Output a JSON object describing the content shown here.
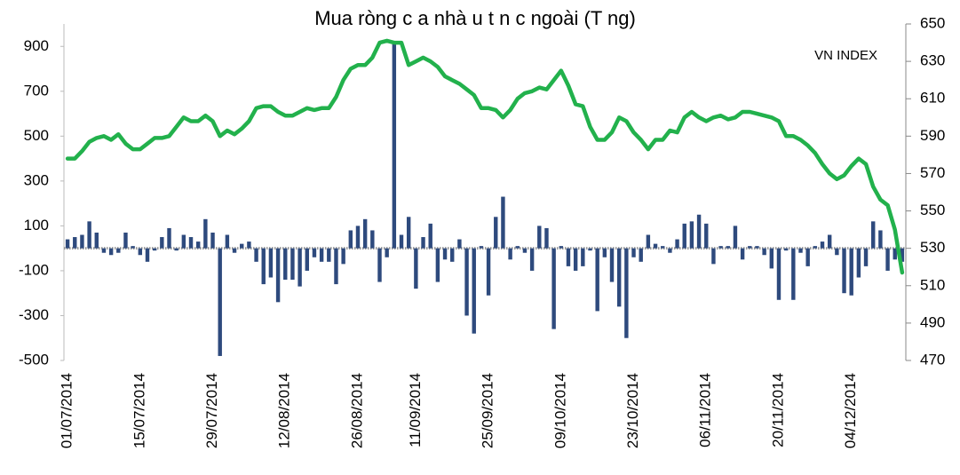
{
  "chart_data": {
    "type": "bar",
    "title": "Mua ròng c a nhà  u t  n  c ngoài (T      ng)",
    "categories": [
      "01/07/2014",
      null,
      null,
      null,
      null,
      null,
      null,
      null,
      null,
      null,
      "15/07/2014",
      null,
      null,
      null,
      null,
      null,
      null,
      null,
      null,
      null,
      "29/07/2014",
      null,
      null,
      null,
      null,
      null,
      null,
      null,
      null,
      null,
      "12/08/2014",
      null,
      null,
      null,
      null,
      null,
      null,
      null,
      null,
      null,
      "26/08/2014",
      null,
      null,
      null,
      null,
      null,
      null,
      null,
      "11/09/2014",
      null,
      null,
      null,
      null,
      null,
      null,
      null,
      null,
      null,
      "25/09/2014",
      null,
      null,
      null,
      null,
      null,
      null,
      null,
      null,
      null,
      "09/10/2014",
      null,
      null,
      null,
      null,
      null,
      null,
      null,
      null,
      null,
      "23/10/2014",
      null,
      null,
      null,
      null,
      null,
      null,
      null,
      null,
      null,
      "06/11/2014",
      null,
      null,
      null,
      null,
      null,
      null,
      null,
      null,
      null,
      "20/11/2014",
      null,
      null,
      null,
      null,
      null,
      null,
      null,
      null,
      null,
      "04/12/2014",
      null,
      null,
      null,
      null,
      null,
      null,
      null
    ],
    "series": [
      {
        "type": "bar",
        "color": "#2e4a7d",
        "values": [
          40,
          50,
          60,
          120,
          70,
          -20,
          -30,
          -20,
          70,
          10,
          -30,
          -60,
          -10,
          50,
          90,
          -10,
          60,
          50,
          30,
          130,
          70,
          -480,
          60,
          -20,
          20,
          30,
          -60,
          -160,
          -130,
          -240,
          -140,
          -140,
          -170,
          -100,
          -40,
          -60,
          -60,
          -160,
          -70,
          80,
          100,
          130,
          80,
          -150,
          -40,
          910,
          60,
          140,
          -180,
          50,
          110,
          -150,
          -50,
          -60,
          40,
          -300,
          -380,
          10,
          -210,
          140,
          230,
          -50,
          10,
          -20,
          -100,
          100,
          90,
          -360,
          10,
          -80,
          -100,
          -80,
          -10,
          -280,
          -40,
          -150,
          -260,
          -400,
          -40,
          -60,
          60,
          20,
          10,
          -20,
          40,
          110,
          120,
          150,
          110,
          -70,
          10,
          10,
          100,
          -50,
          10,
          10,
          -30,
          -90,
          -230,
          -10,
          -230,
          -20,
          -80,
          10,
          30,
          60,
          -30,
          -200,
          -210,
          -130,
          -80,
          120,
          80,
          -100,
          -50,
          -60
        ]
      },
      {
        "type": "line",
        "name": "VN INDEX",
        "axis": "y2",
        "color": "#22b14c",
        "values": [
          578,
          578,
          582,
          587,
          589,
          590,
          588,
          591,
          586,
          583,
          583,
          586,
          589,
          589,
          590,
          595,
          600,
          598,
          598,
          601,
          598,
          590,
          593,
          591,
          594,
          598,
          605,
          606,
          606,
          603,
          601,
          601,
          603,
          605,
          604,
          605,
          605,
          611,
          620,
          626,
          628,
          628,
          632,
          640,
          641,
          640,
          640,
          628,
          630,
          632,
          630,
          627,
          622,
          620,
          618,
          615,
          612,
          605,
          605,
          604,
          600,
          604,
          610,
          613,
          614,
          616,
          615,
          620,
          625,
          617,
          607,
          606,
          595,
          588,
          588,
          592,
          600,
          598,
          592,
          588,
          583,
          588,
          588,
          593,
          592,
          600,
          603,
          600,
          598,
          600,
          601,
          599,
          600,
          603,
          603,
          602,
          601,
          600,
          598,
          590,
          590,
          588,
          585,
          581,
          575,
          570,
          567,
          569,
          574,
          578,
          575,
          563,
          556,
          553,
          540,
          517
        ]
      }
    ],
    "ylim": [
      -500,
      1000
    ],
    "yticks": [
      -500,
      -300,
      -100,
      100,
      300,
      500,
      700,
      900
    ],
    "y2lim": [
      470,
      650
    ],
    "y2ticks": [
      470,
      490,
      510,
      530,
      550,
      570,
      590,
      610,
      630,
      650
    ],
    "grid": false
  }
}
